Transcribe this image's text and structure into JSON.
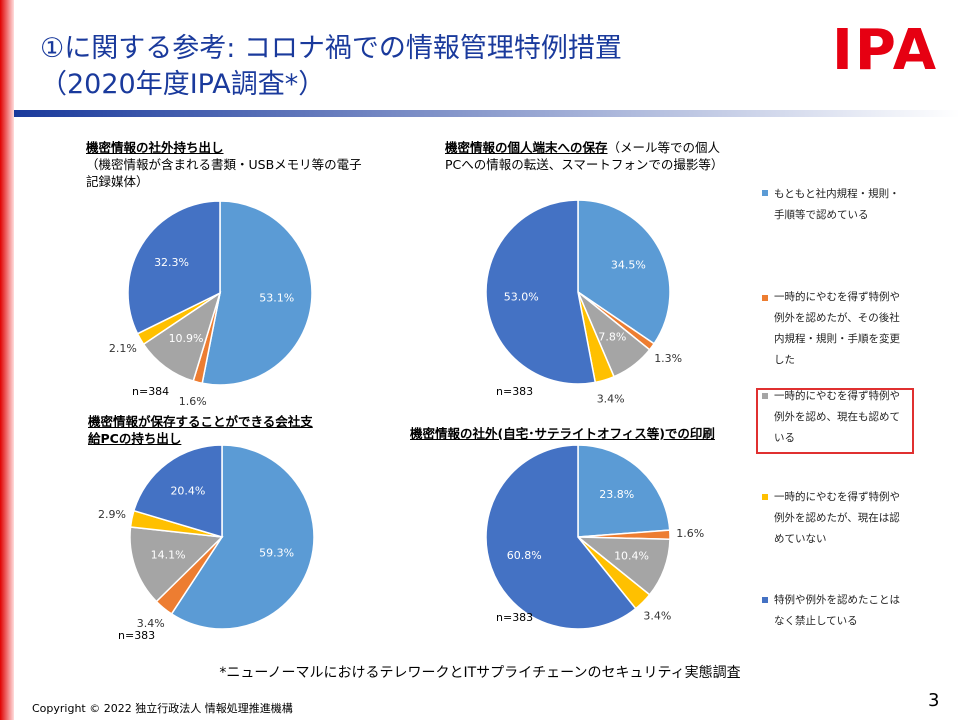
{
  "slide": {
    "title_line1": "①に関する参考: コロナ禍での情報管理特例措置",
    "title_line2": "（2020年度IPA調査*）",
    "logo": "IPA",
    "footnote": "*ニューノーマルにおけるテレワークとITサプライチェーンのセキュリティ実態調査",
    "copyright": "Copyright © 2022 独立行政法人 情報処理推進機構",
    "page": "3"
  },
  "legend": {
    "categories": [
      "もともと社内規程・規則・手順等で認めている",
      "一時的にやむを得ず特例や例外を認めたが、その後社内規程・規則・手順を変更した",
      "一時的にやむを得ず特例や例外を認め、現在も認めている",
      "一時的にやむを得ず特例や例外を認めたが、現在は認めていない",
      "特例や例外を認めたことはなく禁止している"
    ],
    "colors": [
      "#5b9bd5",
      "#ed7d31",
      "#a5a5a5",
      "#ffc000",
      "#4472c4"
    ]
  },
  "chart_data": [
    {
      "type": "pie",
      "title": "機密情報の社外持ち出し",
      "subtitle": "（機密情報が含まれる書類・USBメモリ等の電子記録媒体）",
      "values": [
        53.1,
        1.6,
        10.9,
        2.1,
        32.3
      ],
      "value_labels": [
        "53.1%",
        "1.6%",
        "10.9%",
        "2.1%",
        "32.3%"
      ],
      "annotation": "n=384"
    },
    {
      "type": "pie",
      "title": "機密情報の個人端末への保存",
      "subtitle": "（メール等での個人PCへの情報の転送、スマートフォンでの撮影等）",
      "values": [
        34.5,
        1.3,
        7.8,
        3.4,
        53.0
      ],
      "value_labels": [
        "34.5%",
        "1.3%",
        "7.8%",
        "3.4%",
        "53.0%"
      ],
      "annotation": "n=383"
    },
    {
      "type": "pie",
      "title": "機密情報が保存することができる会社支給PCの持ち出し",
      "values": [
        59.3,
        3.4,
        14.1,
        2.9,
        20.4
      ],
      "value_labels": [
        "59.3%",
        "3.4%",
        "14.1%",
        "2.9%",
        "20.4%"
      ],
      "annotation": "n=383"
    },
    {
      "type": "pie",
      "title": "機密情報の社外(自宅･サテライトオフィス等)での印刷",
      "values": [
        23.8,
        1.6,
        10.4,
        3.4,
        60.8
      ],
      "value_labels": [
        "23.8%",
        "1.6%",
        "10.4%",
        "3.4%",
        "60.8%"
      ],
      "annotation": "n=383"
    }
  ]
}
